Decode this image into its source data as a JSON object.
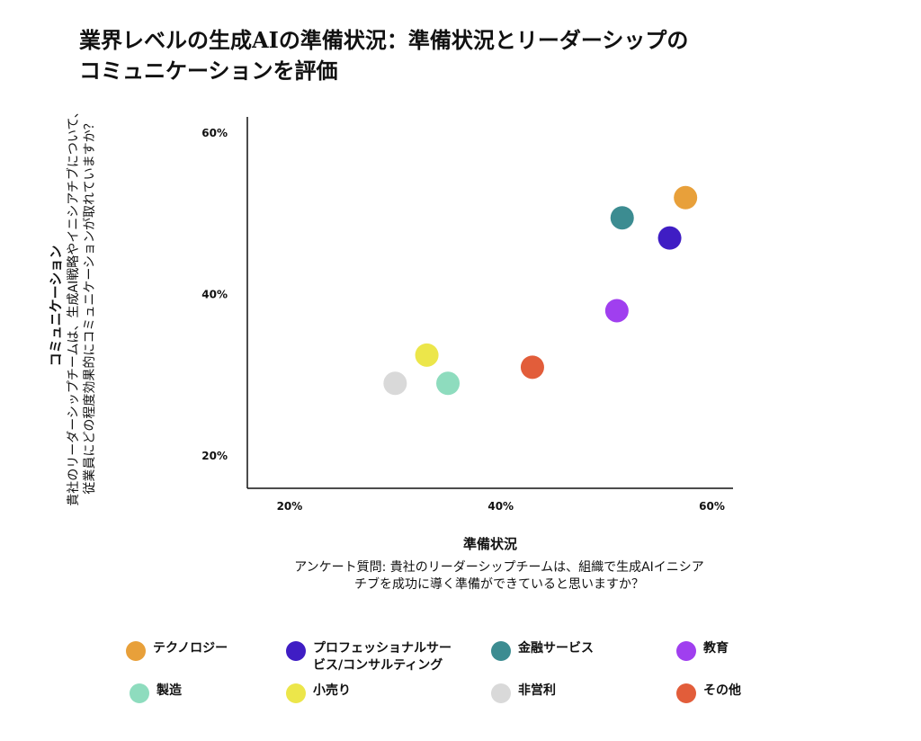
{
  "title": {
    "line1": "業界レベルの生成AIの準備状況：準備状況とリーダーシップの",
    "line2": "コミュニケーションを評価"
  },
  "y_axis": {
    "title": "コミュニケーション",
    "desc_line1": "貴社のリーダーシップチームは、生成AI戦略やイニシアチブについて、",
    "desc_line2": "従業員にどの程度効果的にコミュニケーションが取れていますか？"
  },
  "x_axis": {
    "title": "準備状況",
    "desc_line1": "アンケート質問: 貴社のリーダーシップチームは、組織で生成AIイニシア",
    "desc_line2": "チブを成功に導く準備ができていると思いますか？"
  },
  "chart_data": {
    "type": "scatter",
    "title": "業界レベルの生成AIの準備状況：準備状況とリーダーシップのコミュニケーションを評価",
    "xlabel": "準備状況",
    "ylabel": "コミュニケーション",
    "xlim": [
      16,
      62
    ],
    "ylim": [
      16,
      62
    ],
    "x_ticks": [
      {
        "value": 20,
        "label": "20%"
      },
      {
        "value": 40,
        "label": "40%"
      },
      {
        "value": 60,
        "label": "60%"
      }
    ],
    "y_ticks": [
      {
        "value": 20,
        "label": "20%"
      },
      {
        "value": 40,
        "label": "40%"
      },
      {
        "value": 60,
        "label": "60%"
      }
    ],
    "grid": false,
    "legend_position": "bottom",
    "series": [
      {
        "name": "テクノロジー",
        "color": "#E8A03A",
        "x": 57.5,
        "y": 52
      },
      {
        "name": "プロフェッショナルサービス/コンサルティング",
        "color": "#3F1DC4",
        "x": 56,
        "y": 47
      },
      {
        "name": "金融サービス",
        "color": "#3C8C91",
        "x": 51.5,
        "y": 49.5
      },
      {
        "name": "教育",
        "color": "#A03FEF",
        "x": 51,
        "y": 38
      },
      {
        "name": "製造",
        "color": "#8EDCBE",
        "x": 35,
        "y": 29
      },
      {
        "name": "小売り",
        "color": "#ECE64A",
        "x": 33,
        "y": 32.5
      },
      {
        "name": "非営利",
        "color": "#D9D9D9",
        "x": 30,
        "y": 29
      },
      {
        "name": "その他",
        "color": "#E25D3A",
        "x": 43,
        "y": 31
      }
    ]
  },
  "legend": [
    {
      "label_line1": "テクノロジー",
      "label_line2": "",
      "color": "#E8A03A"
    },
    {
      "label_line1": "プロフェッショナルサー",
      "label_line2": "ビス/コンサルティング",
      "color": "#3F1DC4"
    },
    {
      "label_line1": "金融サービス",
      "label_line2": "",
      "color": "#3C8C91"
    },
    {
      "label_line1": "教育",
      "label_line2": "",
      "color": "#A03FEF"
    },
    {
      "label_line1": "製造",
      "label_line2": "",
      "color": "#8EDCBE"
    },
    {
      "label_line1": "小売り",
      "label_line2": "",
      "color": "#ECE64A"
    },
    {
      "label_line1": "非営利",
      "label_line2": "",
      "color": "#D9D9D9"
    },
    {
      "label_line1": "その他",
      "label_line2": "",
      "color": "#E25D3A"
    }
  ]
}
